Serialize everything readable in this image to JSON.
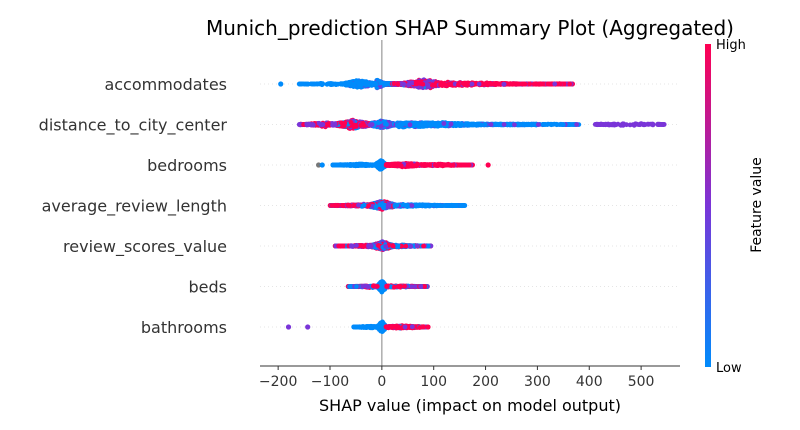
{
  "chart_data": {
    "type": "scatter",
    "title": "Munich_prediction SHAP Summary Plot (Aggregated)",
    "xlabel": "SHAP value (impact on model output)",
    "ylabel": "",
    "xlim": [
      -235,
      575
    ],
    "xticks": [
      -200,
      -100,
      0,
      100,
      200,
      300,
      400,
      500
    ],
    "xtick_labels": [
      "−200",
      "−100",
      "0",
      "100",
      "200",
      "300",
      "400",
      "500"
    ],
    "colorbar": {
      "label": "Feature value",
      "high": "High",
      "low": "Low"
    },
    "colors": {
      "low": "#008bfb",
      "mid": "#7a35d8",
      "high": "#ff0052",
      "nan": "#777777"
    },
    "features": [
      {
        "name": "accommodates",
        "groups": [
          {
            "x": [
              -10,
              20
            ],
            "peak": -10,
            "w": 0.22,
            "n": 1400,
            "ratio": [
              0.65,
              0.3,
              0.05
            ]
          },
          {
            "x": [
              -70,
              -10
            ],
            "peak": -45,
            "w": 0.2,
            "n": 900,
            "ratio": [
              0.85,
              0.15,
              0.0
            ]
          },
          {
            "x": [
              -160,
              -70
            ],
            "peak": -100,
            "w": 0.06,
            "n": 70,
            "ratio": [
              1.0,
              0.0,
              0.0
            ]
          },
          {
            "x": [
              20,
              110
            ],
            "peak": 85,
            "w": 0.24,
            "n": 900,
            "ratio": [
              0.05,
              0.45,
              0.5
            ]
          },
          {
            "x": [
              110,
              370
            ],
            "peak": 130,
            "w": 0.1,
            "n": 600,
            "ratio": [
              0.0,
              0.2,
              0.8
            ]
          }
        ],
        "extra": [
          {
            "x": -195,
            "c": "low"
          }
        ]
      },
      {
        "name": "distance_to_city_center",
        "groups": [
          {
            "x": [
              -90,
              -20
            ],
            "peak": -55,
            "w": 0.24,
            "n": 1100,
            "ratio": [
              0.1,
              0.25,
              0.65
            ]
          },
          {
            "x": [
              -160,
              -90
            ],
            "peak": -110,
            "w": 0.12,
            "n": 200,
            "ratio": [
              0.0,
              0.5,
              0.5
            ]
          },
          {
            "x": [
              -20,
              30
            ],
            "peak": 0,
            "w": 0.2,
            "n": 900,
            "ratio": [
              0.5,
              0.5,
              0.0
            ]
          },
          {
            "x": [
              30,
              300
            ],
            "peak": 60,
            "w": 0.14,
            "n": 1200,
            "ratio": [
              0.9,
              0.1,
              0.0
            ]
          },
          {
            "x": [
              300,
              380
            ],
            "peak": 320,
            "w": 0.04,
            "n": 50,
            "ratio": [
              0.9,
              0.1,
              0.0
            ]
          },
          {
            "x": [
              410,
              545
            ],
            "peak": 470,
            "w": 0.07,
            "n": 90,
            "ratio": [
              0.0,
              1.0,
              0.0
            ]
          }
        ],
        "extra": []
      },
      {
        "name": "bedrooms",
        "groups": [
          {
            "x": [
              -10,
              8
            ],
            "peak": -2,
            "w": 0.26,
            "n": 800,
            "ratio": [
              1.0,
              0.0,
              0.0
            ]
          },
          {
            "x": [
              -95,
              -10
            ],
            "peak": -40,
            "w": 0.06,
            "n": 200,
            "ratio": [
              1.0,
              0.0,
              0.0
            ]
          },
          {
            "x": [
              8,
              90
            ],
            "peak": 45,
            "w": 0.1,
            "n": 500,
            "ratio": [
              0.0,
              0.1,
              0.9
            ]
          },
          {
            "x": [
              90,
              175
            ],
            "peak": 110,
            "w": 0.05,
            "n": 180,
            "ratio": [
              0.0,
              0.1,
              0.9
            ]
          }
        ],
        "extra": [
          {
            "x": -122,
            "c": "nan"
          },
          {
            "x": -115,
            "c": "low"
          },
          {
            "x": 205,
            "c": "high"
          }
        ]
      },
      {
        "name": "average_review_length",
        "groups": [
          {
            "x": [
              -25,
              25
            ],
            "peak": 0,
            "w": 0.24,
            "n": 900,
            "ratio": [
              0.4,
              0.3,
              0.3
            ]
          },
          {
            "x": [
              -100,
              -25
            ],
            "peak": -35,
            "w": 0.07,
            "n": 220,
            "ratio": [
              0.1,
              0.3,
              0.6
            ]
          },
          {
            "x": [
              25,
              160
            ],
            "peak": 45,
            "w": 0.07,
            "n": 280,
            "ratio": [
              0.85,
              0.15,
              0.0
            ]
          }
        ],
        "extra": []
      },
      {
        "name": "review_scores_value",
        "groups": [
          {
            "x": [
              -20,
              20
            ],
            "peak": 0,
            "w": 0.24,
            "n": 900,
            "ratio": [
              0.25,
              0.35,
              0.4
            ]
          },
          {
            "x": [
              -90,
              -20
            ],
            "peak": -30,
            "w": 0.06,
            "n": 200,
            "ratio": [
              0.1,
              0.3,
              0.6
            ]
          },
          {
            "x": [
              20,
              95
            ],
            "peak": 35,
            "w": 0.07,
            "n": 220,
            "ratio": [
              0.45,
              0.3,
              0.25
            ]
          }
        ],
        "extra": []
      },
      {
        "name": "beds",
        "groups": [
          {
            "x": [
              -8,
              8
            ],
            "peak": 0,
            "w": 0.3,
            "n": 700,
            "ratio": [
              1.0,
              0.0,
              0.0
            ]
          },
          {
            "x": [
              -65,
              -8
            ],
            "peak": -20,
            "w": 0.06,
            "n": 140,
            "ratio": [
              0.3,
              0.4,
              0.3
            ]
          },
          {
            "x": [
              8,
              90
            ],
            "peak": 25,
            "w": 0.06,
            "n": 170,
            "ratio": [
              0.2,
              0.3,
              0.5
            ]
          }
        ],
        "extra": []
      },
      {
        "name": "bathrooms",
        "groups": [
          {
            "x": [
              -8,
              8
            ],
            "peak": 0,
            "w": 0.28,
            "n": 700,
            "ratio": [
              1.0,
              0.0,
              0.0
            ]
          },
          {
            "x": [
              -55,
              -8
            ],
            "peak": -20,
            "w": 0.06,
            "n": 140,
            "ratio": [
              1.0,
              0.0,
              0.0
            ]
          },
          {
            "x": [
              8,
              90
            ],
            "peak": 40,
            "w": 0.08,
            "n": 300,
            "ratio": [
              0.05,
              0.15,
              0.8
            ]
          }
        ],
        "extra": [
          {
            "x": -180,
            "c": "mid"
          },
          {
            "x": -143,
            "c": "mid"
          }
        ]
      }
    ]
  }
}
